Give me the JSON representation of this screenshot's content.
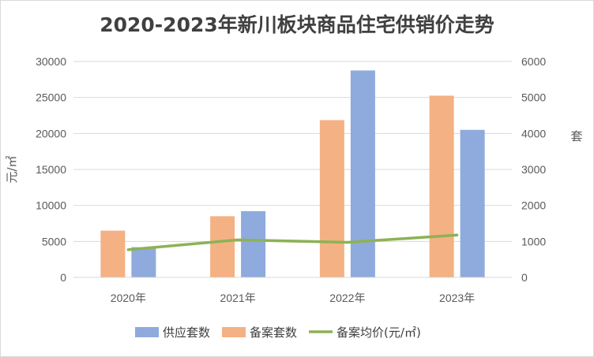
{
  "chart_data": {
    "type": "bar",
    "title": "2020-2023年新川板块商品住宅供销价走势",
    "categories": [
      "2020年",
      "2021年",
      "2022年",
      "2023年"
    ],
    "series": [
      {
        "name": "备案套数",
        "type": "bar",
        "axis": "right",
        "color": "#F4B183",
        "values": [
          1300,
          1700,
          4370,
          5050
        ]
      },
      {
        "name": "供应套数",
        "type": "bar",
        "axis": "right",
        "color": "#8FAADC",
        "values": [
          840,
          1840,
          5750,
          4100
        ]
      },
      {
        "name": "备案均价(元/㎡)",
        "type": "line",
        "axis": "left",
        "color": "#8DB255",
        "values": [
          3850,
          5220,
          4870,
          5880
        ]
      }
    ],
    "ylabel": "元/㎡",
    "y2label": "套",
    "ylim": [
      0,
      30000
    ],
    "y2lim": [
      0,
      6000
    ],
    "yticks": [
      "0",
      "5000",
      "10000",
      "15000",
      "20000",
      "25000",
      "30000"
    ],
    "y2ticks": [
      "0",
      "1000",
      "2000",
      "3000",
      "4000",
      "5000",
      "6000"
    ],
    "grid": true,
    "legend_position": "bottom",
    "legend": [
      {
        "label": "供应套数",
        "color": "#8FAADC",
        "kind": "bar"
      },
      {
        "label": "备案套数",
        "color": "#F4B183",
        "kind": "bar"
      },
      {
        "label": "备案均价(元/㎡)",
        "color": "#8DB255",
        "kind": "line"
      }
    ]
  }
}
